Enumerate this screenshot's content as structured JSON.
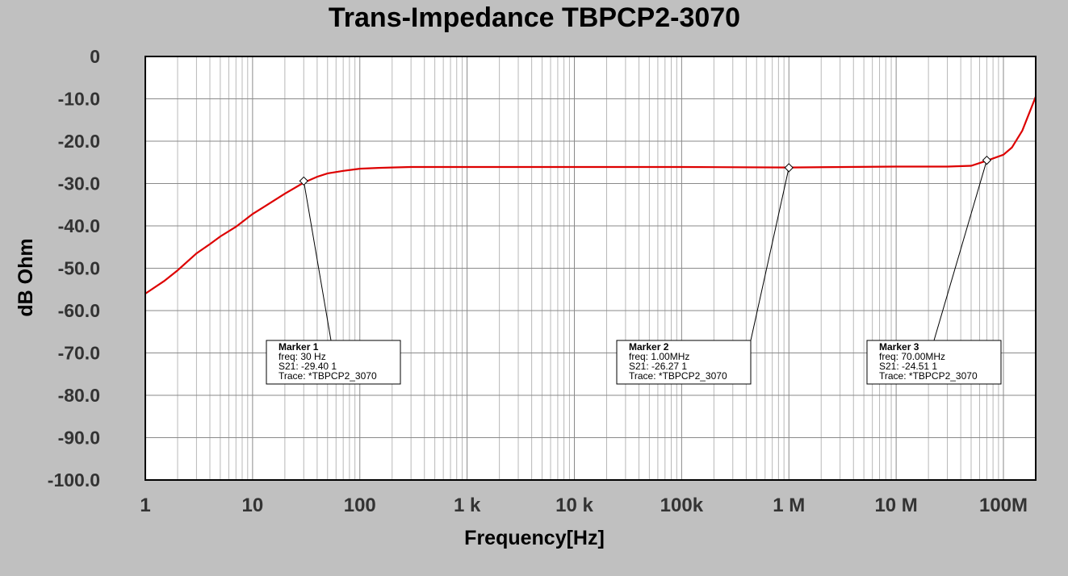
{
  "chart_data": {
    "type": "line",
    "title": "Trans-Impedance TBPCP2-3070",
    "xlabel": "Frequency[Hz]",
    "ylabel": "dB Ohm",
    "xscale": "log",
    "xlim": [
      1,
      200000000
    ],
    "ylim": [
      -100,
      0
    ],
    "grid": true,
    "y_ticks": [
      {
        "value": 0,
        "label": "0"
      },
      {
        "value": -10,
        "label": "-10.0"
      },
      {
        "value": -20,
        "label": "-20.0"
      },
      {
        "value": -30,
        "label": "-30.0"
      },
      {
        "value": -40,
        "label": "-40.0"
      },
      {
        "value": -50,
        "label": "-50.0"
      },
      {
        "value": -60,
        "label": "-60.0"
      },
      {
        "value": -70,
        "label": "-70.0"
      },
      {
        "value": -80,
        "label": "-80.0"
      },
      {
        "value": -90,
        "label": "-90.0"
      },
      {
        "value": -100,
        "label": "-100.0"
      }
    ],
    "x_ticks": [
      {
        "value": 1,
        "label": "1"
      },
      {
        "value": 10,
        "label": "10"
      },
      {
        "value": 100,
        "label": "100"
      },
      {
        "value": 1000,
        "label": "1  k"
      },
      {
        "value": 10000,
        "label": "10 k"
      },
      {
        "value": 100000,
        "label": "100k"
      },
      {
        "value": 1000000,
        "label": "1  M"
      },
      {
        "value": 10000000,
        "label": "10 M"
      },
      {
        "value": 100000000,
        "label": "100M"
      }
    ],
    "series": [
      {
        "color": "#dd0000",
        "x": [
          1,
          1.5,
          2,
          3,
          4,
          5,
          7,
          10,
          15,
          20,
          30,
          40,
          50,
          70,
          100,
          150,
          200,
          300,
          500,
          1000,
          10000,
          100000,
          1000000,
          10000000,
          30000000,
          50000000,
          70000000,
          100000000,
          120000000,
          150000000,
          200000000
        ],
        "y": [
          -56,
          -53,
          -50.5,
          -46.5,
          -44.3,
          -42.5,
          -40.2,
          -37.2,
          -34.4,
          -32.4,
          -29.8,
          -28.4,
          -27.6,
          -27.0,
          -26.5,
          -26.3,
          -26.2,
          -26.1,
          -26.1,
          -26.1,
          -26.1,
          -26.1,
          -26.2,
          -26.0,
          -26.0,
          -25.8,
          -24.6,
          -23.2,
          -21.5,
          -17.5,
          -9.5
        ]
      }
    ],
    "markers": [
      {
        "x": 30,
        "y": -29.4,
        "name": "Marker 1",
        "freq": "freq: 30  Hz",
        "value": "S21: -29.40 1",
        "trace": "Trace: *TBPCP2_3070"
      },
      {
        "x": 1000000,
        "y": -26.27,
        "name": "Marker 2",
        "freq": "freq: 1.00MHz",
        "value": "S21: -26.27 1",
        "trace": "Trace: *TBPCP2_3070"
      },
      {
        "x": 70000000,
        "y": -24.51,
        "name": "Marker 3",
        "freq": "freq: 70.00MHz",
        "value": "S21: -24.51 1",
        "trace": "Trace: *TBPCP2_3070"
      }
    ]
  }
}
